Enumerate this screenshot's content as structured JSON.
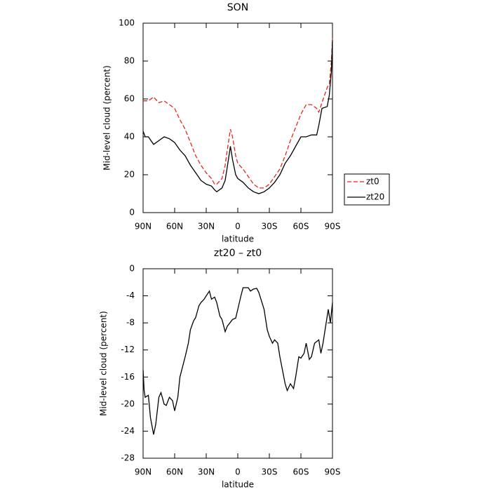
{
  "chart_data": [
    {
      "type": "line",
      "title": "SON",
      "xlabel": "latitude",
      "ylabel": "Mid-level cloud (percent)",
      "xlim": [
        90,
        -90
      ],
      "ylim": [
        0,
        100
      ],
      "xticks": [
        {
          "value": 90,
          "label": "90N"
        },
        {
          "value": 60,
          "label": "60N"
        },
        {
          "value": 30,
          "label": "30N"
        },
        0,
        {
          "value": -30,
          "label": "30S"
        },
        {
          "value": -60,
          "label": "60S"
        },
        {
          "value": -90,
          "label": "90S"
        }
      ],
      "yticks": [
        0,
        20,
        40,
        60,
        80,
        100
      ],
      "legend": "right",
      "x": [
        90,
        88,
        85,
        80,
        75,
        70,
        65,
        60,
        55,
        50,
        45,
        40,
        35,
        30,
        25,
        22,
        20,
        15,
        12,
        10,
        7,
        5,
        2,
        0,
        -5,
        -10,
        -15,
        -20,
        -25,
        -30,
        -35,
        -40,
        -45,
        -50,
        -55,
        -60,
        -65,
        -70,
        -75,
        -77,
        -80,
        -85,
        -87,
        -89,
        -90
      ],
      "series": [
        {
          "name": "zt0",
          "color": "#e8261c",
          "linestyle": "dashed",
          "values": [
            59,
            59,
            59,
            61,
            58,
            59,
            57,
            55,
            49,
            44,
            37,
            30,
            25,
            21,
            18,
            15,
            15,
            18,
            25,
            33,
            44,
            40,
            30,
            26,
            23,
            19,
            15,
            13,
            13,
            15,
            19,
            23,
            30,
            38,
            45,
            52,
            57,
            57,
            55,
            53,
            58,
            66,
            68,
            80,
            92
          ]
        },
        {
          "name": "zt20",
          "color": "#000000",
          "linestyle": "solid",
          "values": [
            43,
            40,
            40,
            36,
            38,
            40,
            39,
            37,
            33,
            30,
            25,
            21,
            17,
            15,
            14,
            12,
            11,
            13,
            17,
            24,
            35,
            28,
            20,
            18,
            16,
            13,
            11,
            10,
            11,
            13,
            16,
            20,
            26,
            30,
            35,
            40,
            40,
            41,
            41,
            46,
            55,
            56,
            62,
            75,
            91
          ]
        }
      ]
    },
    {
      "type": "line",
      "title": "zt20 – zt0",
      "xlabel": "latitude",
      "ylabel": "Mid-level cloud (percent)",
      "xlim": [
        90,
        -90
      ],
      "ylim": [
        -28,
        0
      ],
      "xticks": [
        {
          "value": 90,
          "label": "90N"
        },
        {
          "value": 60,
          "label": "60N"
        },
        {
          "value": 30,
          "label": "30N"
        },
        0,
        {
          "value": -30,
          "label": "30S"
        },
        {
          "value": -60,
          "label": "60S"
        },
        {
          "value": -90,
          "label": "90S"
        }
      ],
      "yticks": [
        -28,
        -24,
        -20,
        -16,
        -12,
        -8,
        -4,
        0
      ],
      "x": [
        90,
        89,
        88,
        85,
        83,
        80,
        78,
        75,
        73,
        70,
        68,
        65,
        62,
        60,
        57,
        55,
        50,
        47,
        45,
        42,
        40,
        37,
        35,
        32,
        30,
        27,
        25,
        22,
        20,
        17,
        15,
        12,
        10,
        5,
        2,
        0,
        -3,
        -5,
        -10,
        -12,
        -15,
        -18,
        -20,
        -25,
        -28,
        -30,
        -33,
        -35,
        -38,
        -40,
        -45,
        -47,
        -50,
        -53,
        -55,
        -58,
        -60,
        -63,
        -65,
        -68,
        -70,
        -73,
        -77,
        -79,
        -81,
        -84,
        -86,
        -88,
        -90
      ],
      "series": [
        {
          "name": "zt20 – zt0",
          "color": "#000000",
          "linestyle": "solid",
          "values": [
            -15,
            -18,
            -19,
            -18.7,
            -22,
            -24.5,
            -23,
            -19,
            -18.3,
            -20,
            -20.2,
            -19,
            -19.5,
            -21,
            -19,
            -16,
            -13,
            -11,
            -9,
            -7.7,
            -7.2,
            -5.5,
            -5,
            -4.5,
            -4,
            -3.3,
            -4.5,
            -4.2,
            -5,
            -7,
            -7.5,
            -9.3,
            -8.5,
            -7.5,
            -7.3,
            -6,
            -4,
            -2.8,
            -2.8,
            -3.3,
            -3,
            -2.9,
            -3.5,
            -6,
            -9,
            -10,
            -11,
            -10.5,
            -11,
            -13,
            -17,
            -18,
            -17,
            -17.7,
            -16,
            -13,
            -13.2,
            -12.5,
            -11,
            -13.4,
            -13,
            -11,
            -10.5,
            -12.5,
            -11,
            -8,
            -6,
            -8,
            -5
          ]
        }
      ]
    }
  ]
}
